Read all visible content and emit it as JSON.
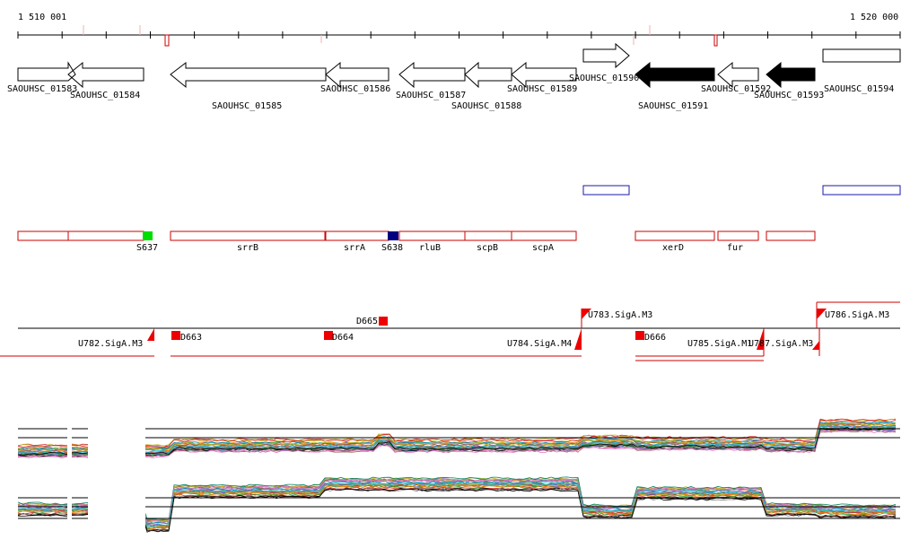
{
  "coords": {
    "start": "1 510 001",
    "end": "1 520 000"
  },
  "colors": {
    "gene_outline": "#000000",
    "gene_filled": "#000000",
    "feature_red": "#cc0000",
    "feature_blue": "#1a1aa8",
    "marker_green": "#00dd00",
    "marker_navy": "#000080",
    "mark_red": "#ee0000",
    "background": "#ffffff"
  },
  "genes": [
    {
      "name": "SAOUHSC_01583",
      "dir": "fwd",
      "filled": false
    },
    {
      "name": "SAOUHSC_01584",
      "dir": "rev",
      "filled": false
    },
    {
      "name": "SAOUHSC_01585",
      "dir": "rev",
      "filled": false
    },
    {
      "name": "SAOUHSC_01586",
      "dir": "rev",
      "filled": false
    },
    {
      "name": "SAOUHSC_01587",
      "dir": "rev",
      "filled": false
    },
    {
      "name": "SAOUHSC_01588",
      "dir": "rev",
      "filled": false
    },
    {
      "name": "SAOUHSC_01589",
      "dir": "rev",
      "filled": false
    },
    {
      "name": "SAOUHSC_01590",
      "dir": "fwd",
      "filled": false
    },
    {
      "name": "SAOUHSC_01591",
      "dir": "rev",
      "filled": true
    },
    {
      "name": "SAOUHSC_01592",
      "dir": "rev",
      "filled": false
    },
    {
      "name": "SAOUHSC_01593",
      "dir": "rev",
      "filled": true
    },
    {
      "name": "SAOUHSC_01594",
      "dir": "fwd",
      "filled": false
    }
  ],
  "annotations": [
    {
      "label": ""
    },
    {
      "label": ""
    },
    {
      "label": "srrB"
    },
    {
      "label": "srrA"
    },
    {
      "label": "rluB"
    },
    {
      "label": "scpB"
    },
    {
      "label": "scpA"
    },
    {
      "label": "xerD"
    },
    {
      "label": "fur"
    },
    {
      "label": ""
    }
  ],
  "markers": [
    {
      "label": "S637",
      "color": "green"
    },
    {
      "label": "S638",
      "color": "navy"
    }
  ],
  "segments": [
    {
      "label": "D663"
    },
    {
      "label": "D664"
    },
    {
      "label": "D665"
    },
    {
      "label": "D666"
    }
  ],
  "signals": [
    {
      "label": "U782.SigA.M3"
    },
    {
      "label": "U783.SigA.M3"
    },
    {
      "label": "U784.SigA.M4"
    },
    {
      "label": "U785.SigA.M1"
    },
    {
      "label": "U787.SigA.M3"
    },
    {
      "label": "U786.SigA.M3"
    }
  ]
}
